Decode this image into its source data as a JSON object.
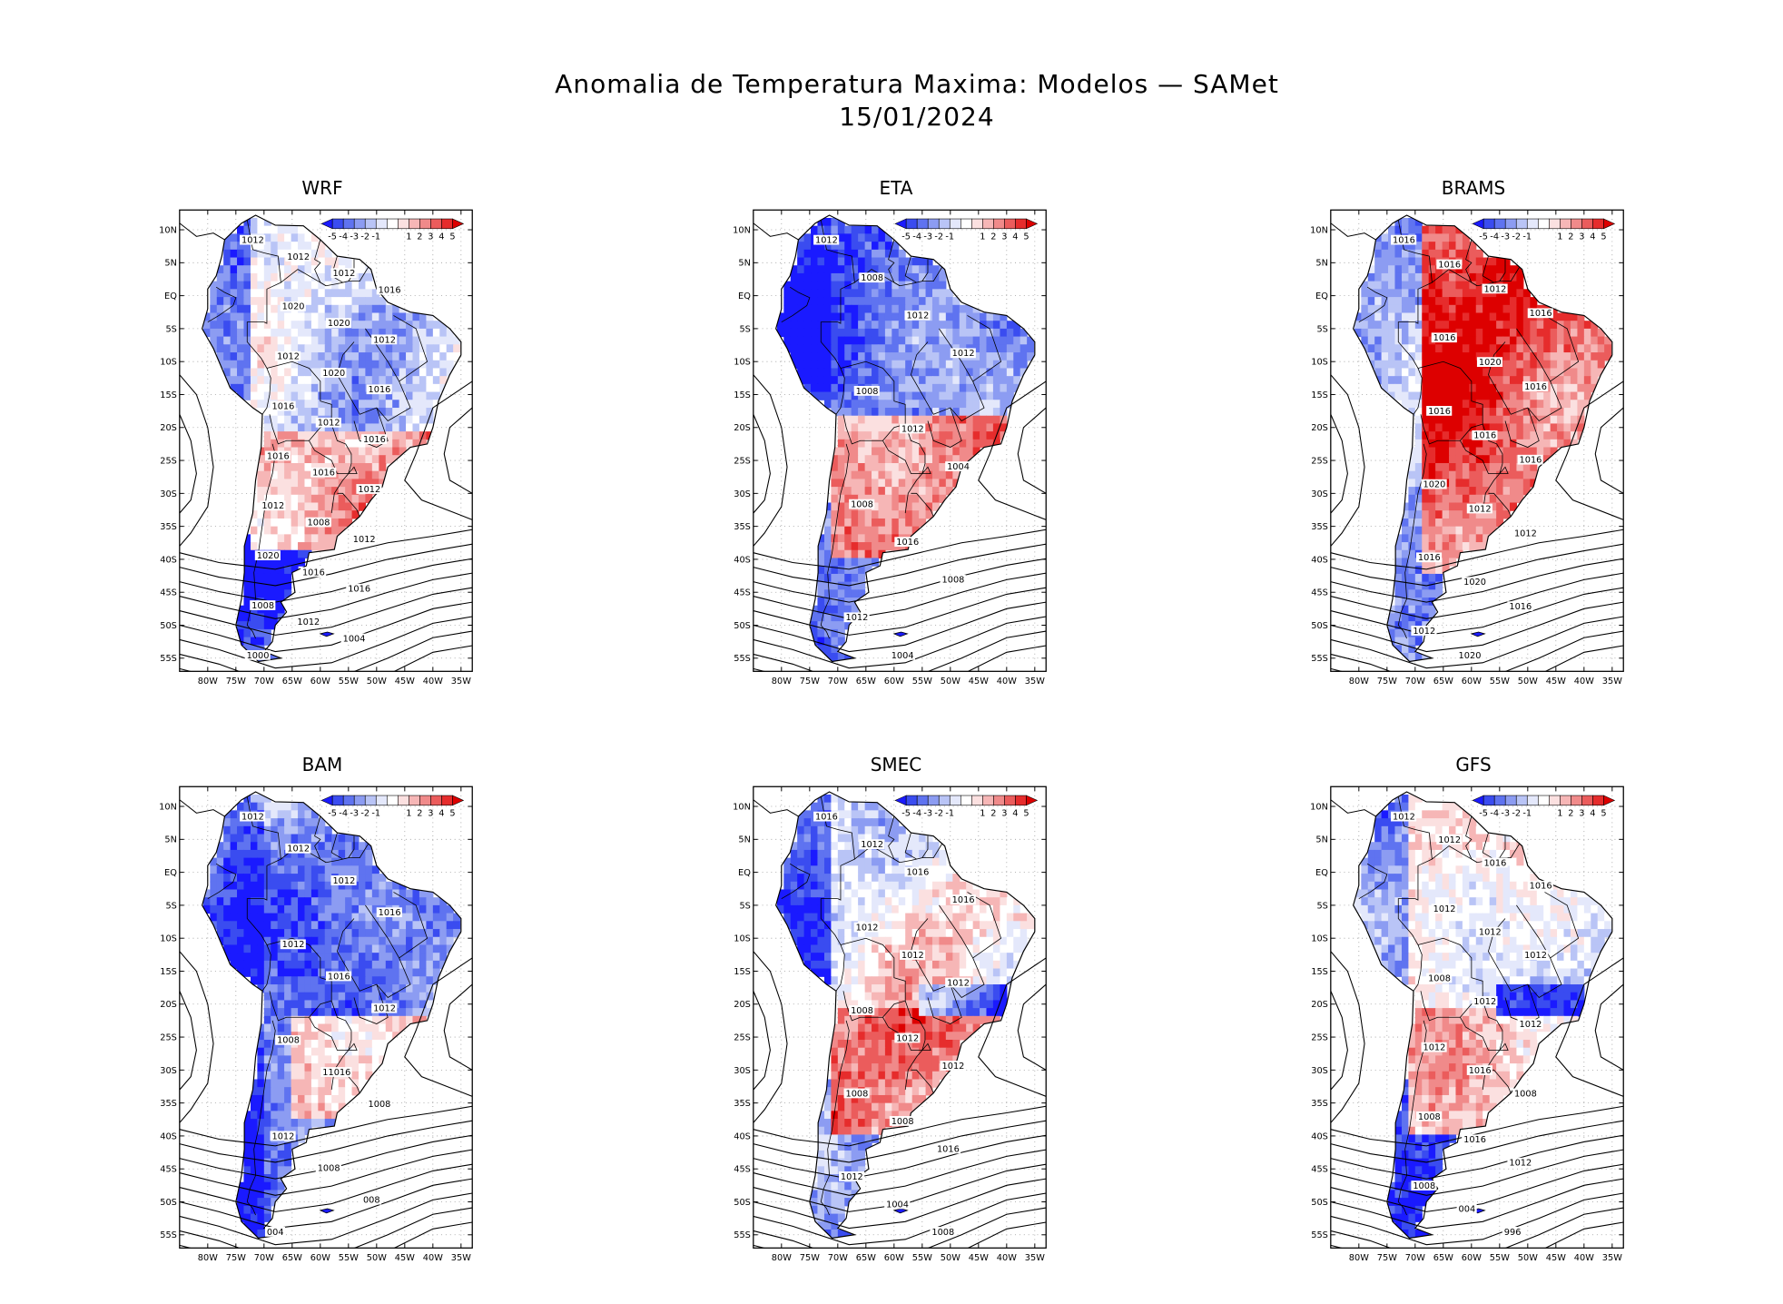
{
  "figure": {
    "title_line1": "Anomalia de Temperatura Maxima: Modelos — SAMet",
    "title_line2": "15/01/2024"
  },
  "lat_ticks": [
    "10N",
    "5N",
    "EQ",
    "5S",
    "10S",
    "15S",
    "20S",
    "25S",
    "30S",
    "35S",
    "40S",
    "45S",
    "50S",
    "55S"
  ],
  "lon_ticks": [
    "80W",
    "75W",
    "70W",
    "65W",
    "60W",
    "55W",
    "50W",
    "45W",
    "40W",
    "35W"
  ],
  "colorbar": {
    "labels": [
      "-5",
      "-4",
      "-3",
      "-2",
      "-1",
      "1",
      "2",
      "3",
      "4",
      "5"
    ],
    "colors": [
      "#1a1aff",
      "#3a4cf0",
      "#5f73f0",
      "#8c9cf2",
      "#b9c4f6",
      "#e4e8fb",
      "#ffffff",
      "#fbe0e0",
      "#f6b6b6",
      "#f08a8a",
      "#eb5c5c",
      "#e62c2c",
      "#dd0000"
    ]
  },
  "panels": [
    {
      "name": "WRF",
      "scheme": "mixed_blue_west",
      "labels": [
        "1012",
        "1012",
        "1012",
        "1016",
        "1020",
        "1020",
        "1012",
        "1012",
        "1020",
        "1016",
        "1016",
        "1012",
        "1016",
        "1016",
        "1016",
        "1012",
        "1012",
        "1008",
        "1012",
        "1020",
        "1016",
        "1016",
        "1008",
        "1012",
        "1004",
        "1000"
      ]
    },
    {
      "name": "ETA",
      "scheme": "blue_north",
      "labels": [
        "1012",
        "1008",
        "1012",
        "1012",
        "1008",
        "1012",
        "1004",
        "1008",
        "1016",
        "1008",
        "1012",
        "1004"
      ]
    },
    {
      "name": "BRAMS",
      "scheme": "red",
      "labels": [
        "1016",
        "1016",
        "1012",
        "1016",
        "1016",
        "1020",
        "1016",
        "1016",
        "1016",
        "1016",
        "1020",
        "1012",
        "1012",
        "1016",
        "1020",
        "1016",
        "1012",
        "1020"
      ]
    },
    {
      "name": "BAM",
      "scheme": "blue",
      "labels": [
        "1012",
        "1012",
        "1012",
        "1016",
        "1012",
        "1016",
        "1012",
        "1008",
        "11016",
        "1008",
        "1012",
        "1008",
        "008",
        "004"
      ]
    },
    {
      "name": "SMEC",
      "scheme": "mixed",
      "labels": [
        "1016",
        "1012",
        "1016",
        "1016",
        "1012",
        "1012",
        "1012",
        "1008",
        "1012",
        "1012",
        "1008",
        "1008",
        "1016",
        "1012",
        "1004",
        "1008"
      ]
    },
    {
      "name": "GFS",
      "scheme": "mixed",
      "labels": [
        "1012",
        "1012",
        "1016",
        "1016",
        "1012",
        "1012",
        "1012",
        "1008",
        "1012",
        "1012",
        "1012",
        "1016",
        "1008",
        "1008",
        "1016",
        "1012",
        "1008",
        "004",
        "996"
      ]
    }
  ]
}
